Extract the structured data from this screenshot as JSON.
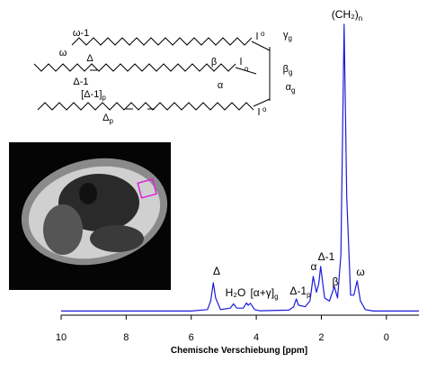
{
  "chart_data": {
    "type": "line",
    "x": [
      10,
      6,
      5.5,
      5.4,
      5.32,
      5.25,
      5.1,
      4.8,
      4.7,
      4.6,
      4.4,
      4.3,
      4.25,
      4.18,
      4.05,
      3.9,
      3.0,
      2.85,
      2.77,
      2.7,
      2.5,
      2.35,
      2.25,
      2.15,
      2.08,
      2.02,
      1.9,
      1.75,
      1.6,
      1.5,
      1.4,
      1.3,
      1.22,
      1.1,
      1.0,
      0.9,
      0.8,
      0.65,
      0.4,
      0,
      -1
    ],
    "series": [
      {
        "color": "#1c1cd8",
        "values": [
          0.5,
          0.5,
          1,
          4,
          10.3,
          5,
          1,
          1.5,
          3,
          1.5,
          1.5,
          3.3,
          2.5,
          3.2,
          1,
          0.6,
          0.8,
          2,
          4.7,
          2.5,
          2,
          4,
          12.5,
          7,
          10,
          16,
          5,
          4,
          9,
          5,
          20,
          100,
          40,
          6,
          6,
          11,
          4,
          1,
          0.5,
          0.5,
          0.5
        ]
      }
    ],
    "xlim": [
      10,
      -1
    ],
    "ylim": [
      0,
      100
    ],
    "xticks": [
      10,
      8,
      6,
      4,
      2,
      0
    ],
    "xlabel": "Chemische Verschiebung  [ppm]",
    "annotations": [
      {
        "text": "Δ"
      },
      {
        "text": "H₂O"
      },
      {
        "text": "[α+γ]",
        "sub": "g"
      },
      {
        "text": "Δ-1",
        "sub": "p"
      },
      {
        "text": "α"
      },
      {
        "text": "Δ-1"
      },
      {
        "text": "β"
      },
      {
        "text": "(CH₂)",
        "sub": "n"
      },
      {
        "text": "ω"
      }
    ]
  },
  "structure": {
    "labels": [
      {
        "text": "ω-1"
      },
      {
        "text": "ω"
      },
      {
        "text": "Δ"
      },
      {
        "text": "Δ-1"
      },
      {
        "text": "β"
      },
      {
        "text": "α"
      },
      {
        "text": "γ",
        "sub": "g"
      },
      {
        "text": "β",
        "sub": "g"
      },
      {
        "text": "α",
        "sub": "g"
      },
      {
        "text": "[Δ-1]",
        "sub": "p"
      },
      {
        "text": "Δ",
        "sub": "p"
      }
    ]
  }
}
